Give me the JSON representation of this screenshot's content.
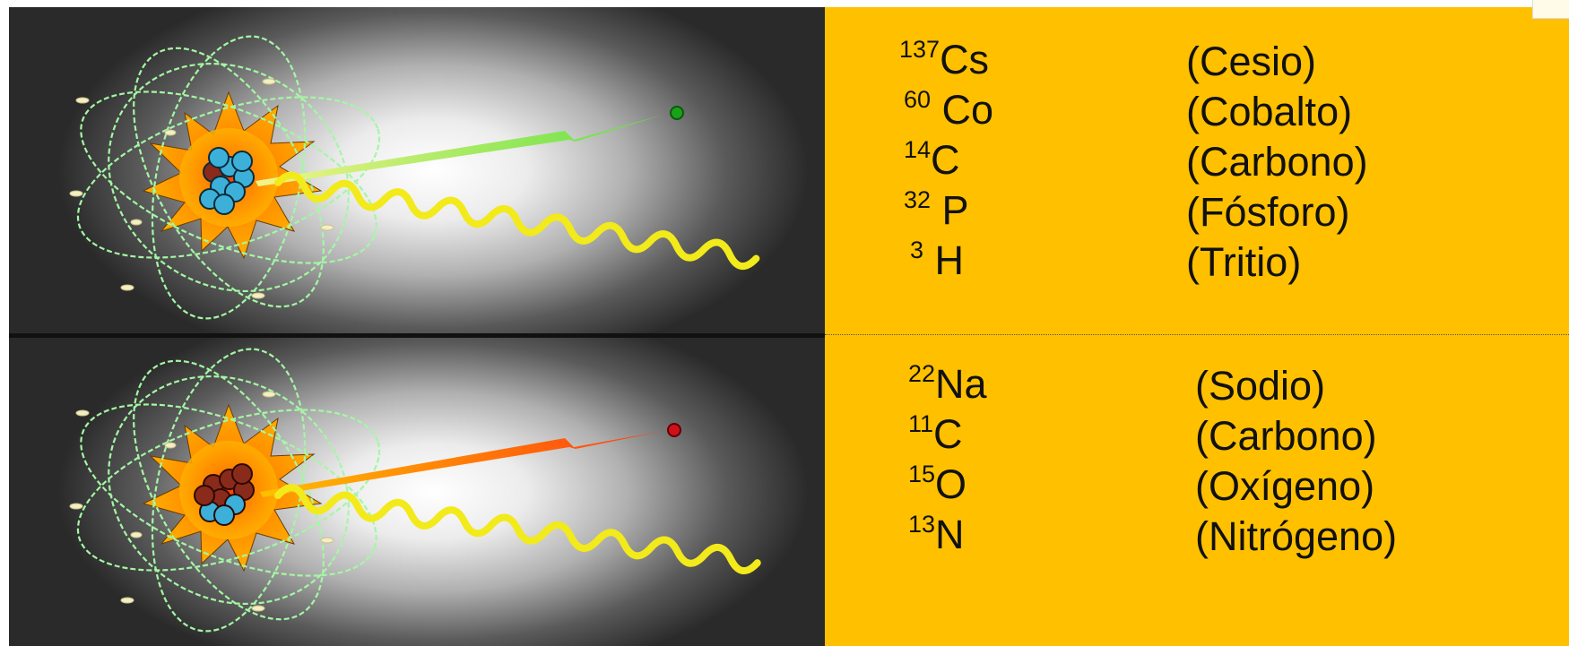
{
  "panel_top": {
    "isotopes": [
      {
        "mass": "137",
        "symbol": "Cs",
        "name": "(Cesio)"
      },
      {
        "mass": "60",
        "symbol": " Co",
        "name": "(Cobalto)"
      },
      {
        "mass": "14",
        "symbol": "C",
        "name": "(Carbono)"
      },
      {
        "mass": "32",
        "symbol": " P",
        "name": "(Fósforo)"
      },
      {
        "mass": "3",
        "symbol": " H",
        "name": "(Tritio)"
      }
    ]
  },
  "panel_bottom": {
    "isotopes": [
      {
        "mass": "22",
        "symbol": "Na",
        "name": "(Sodio)"
      },
      {
        "mass": "11",
        "symbol": "C",
        "name": "(Carbono)"
      },
      {
        "mass": "15",
        "symbol": "O",
        "name": "(Oxígeno)"
      },
      {
        "mass": "13",
        "symbol": "N",
        "name": "(Nitrógeno)"
      }
    ]
  },
  "colors": {
    "info_background": "#ffc000",
    "beta_minus_arrow": "#7fe050",
    "beta_plus_arrow": "#ff5a10",
    "gamma_wave": "#f2ea1a",
    "orbit": "#8fef8f"
  },
  "icons": [
    "atom-illustration",
    "nucleus-icon",
    "particle-arrow",
    "gamma-wave"
  ]
}
